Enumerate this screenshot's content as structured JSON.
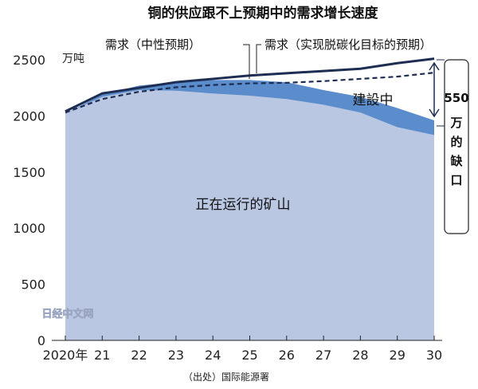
{
  "chart_data": {
    "type": "area",
    "title": "铜的供应跟不上预期中的需求增长速度",
    "ylabel": "万吨",
    "ylim": [
      0,
      2500
    ],
    "y_ticks": [
      0,
      500,
      1000,
      1500,
      2000,
      2500
    ],
    "x": [
      "2020年",
      "21",
      "22",
      "23",
      "24",
      "25",
      "26",
      "27",
      "28",
      "29",
      "30"
    ],
    "series": [
      {
        "name": "正在运行的矿山",
        "kind": "area",
        "color": "#b9c7e3",
        "values": [
          2020,
          2170,
          2230,
          2225,
          2200,
          2180,
          2150,
          2100,
          2030,
          1900,
          1830
        ]
      },
      {
        "name": "建設中",
        "kind": "area",
        "color": "#5b8ccc",
        "values": [
          2020,
          2190,
          2270,
          2300,
          2320,
          2320,
          2300,
          2230,
          2170,
          2070,
          1960
        ]
      },
      {
        "name": "需求（实现脱碳化目标的预期）",
        "kind": "line",
        "style": "solid",
        "color": "#1e2d52",
        "values": [
          2040,
          2200,
          2250,
          2300,
          2330,
          2360,
          2380,
          2400,
          2420,
          2470,
          2510
        ]
      },
      {
        "name": "需求（中性预期）",
        "kind": "line",
        "style": "dashed",
        "color": "#1e2d52",
        "values": [
          2030,
          2150,
          2215,
          2255,
          2275,
          2290,
          2295,
          2310,
          2330,
          2350,
          2385
        ]
      }
    ],
    "annotation": {
      "value": "550",
      "text": "万的缺口"
    },
    "grid": false,
    "source": "（出处）国际能源署",
    "watermark": "日经中文网"
  }
}
